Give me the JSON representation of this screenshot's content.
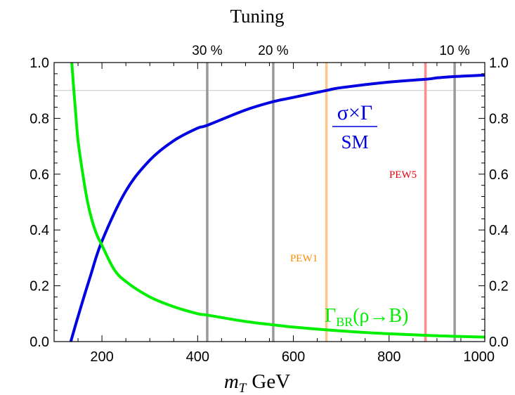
{
  "chart_data": {
    "type": "line",
    "title": "Tuning",
    "xlabel_italic": "m",
    "xlabel_sub": "T",
    "xlabel_unit": "GeV",
    "xlim": [
      100,
      1000
    ],
    "ylim": [
      0.0,
      1.0
    ],
    "x_ticks": [
      "200",
      "400",
      "600",
      "800",
      "1000"
    ],
    "x_tick_values": [
      200,
      400,
      600,
      800,
      1000
    ],
    "y_ticks": [
      "0.0",
      "0.2",
      "0.4",
      "0.6",
      "0.8",
      "1.0"
    ],
    "y_tick_values": [
      0.0,
      0.2,
      0.4,
      0.6,
      0.8,
      1.0
    ],
    "grid": false,
    "horizontal_reference": 0.9,
    "tuning_lines": [
      {
        "label": "30 %",
        "x": 420
      },
      {
        "label": "20 %",
        "x": 558
      },
      {
        "label": "10 %",
        "x": 937
      }
    ],
    "bounds": [
      {
        "label": "PEW1",
        "x": 669,
        "color": "#FFC58A",
        "label_color": "#FF8C00",
        "label_y": 0.3
      },
      {
        "label": "PEW5",
        "x": 876,
        "color": "#FF8C8C",
        "label_color": "#E8000B",
        "label_y": 0.6
      }
    ],
    "series": [
      {
        "name_main": "σ×Γ",
        "name_den": "SM",
        "color": "#0000E0",
        "x": [
          135,
          150,
          175,
          200,
          250,
          300,
          350,
          400,
          420,
          500,
          558,
          600,
          669,
          700,
          800,
          876,
          900,
          937,
          1000
        ],
        "y": [
          0.0,
          0.09,
          0.23,
          0.36,
          0.54,
          0.65,
          0.72,
          0.765,
          0.775,
          0.83,
          0.86,
          0.875,
          0.9,
          0.91,
          0.93,
          0.94,
          0.945,
          0.95,
          0.955
        ]
      },
      {
        "name_main": "Γ",
        "name_sub": "BR",
        "name_args": "(ρ→B)",
        "color": "#00EE00",
        "x": [
          137,
          140,
          145,
          150,
          160,
          170,
          180,
          190,
          200,
          225,
          250,
          300,
          350,
          400,
          420,
          500,
          558,
          600,
          700,
          800,
          900,
          1000
        ],
        "y": [
          1.0,
          0.93,
          0.82,
          0.72,
          0.6,
          0.5,
          0.43,
          0.38,
          0.345,
          0.26,
          0.215,
          0.16,
          0.125,
          0.1,
          0.095,
          0.072,
          0.06,
          0.052,
          0.038,
          0.028,
          0.021,
          0.016
        ]
      }
    ]
  }
}
